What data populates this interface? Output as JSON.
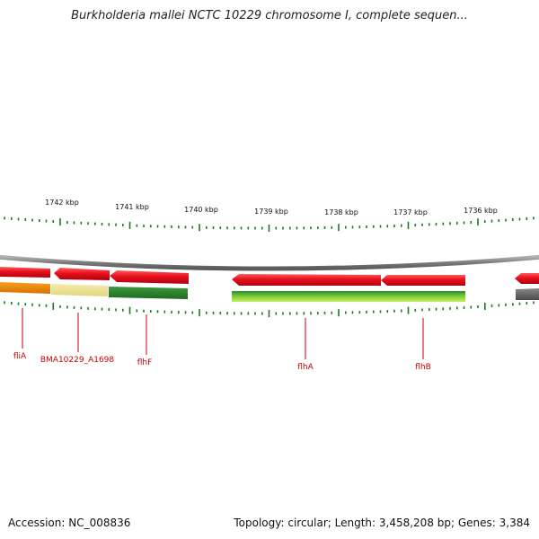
{
  "title": "Burkholderia mallei NCTC 10229 chromosome I, complete sequen...",
  "footer": {
    "accession": "Accession: NC_008836",
    "summary": "Topology: circular; Length: 3,458,208 bp; Genes: 3,384"
  },
  "ticks": [
    {
      "label": "1742 kbp"
    },
    {
      "label": "1741 kbp"
    },
    {
      "label": "1740 kbp"
    },
    {
      "label": "1739 kbp"
    },
    {
      "label": "1738 kbp"
    },
    {
      "label": "1737 kbp"
    },
    {
      "label": "1736 kbp"
    }
  ],
  "genes": [
    {
      "label": "fliA"
    },
    {
      "label": "BMA10229_A1698"
    },
    {
      "label": "flhF"
    },
    {
      "label": "flhA"
    },
    {
      "label": "flhB"
    }
  ],
  "colors": {
    "cds": "#e8101c",
    "backbone": "#8a8a8a",
    "tick": "#1a7a1a",
    "gene_label": "#cc0000",
    "orange": "#f08c00",
    "khaki": "#ece59a",
    "green": "#2f8a2f",
    "lightgreen": "#a6e24a",
    "gray": "#666666"
  }
}
